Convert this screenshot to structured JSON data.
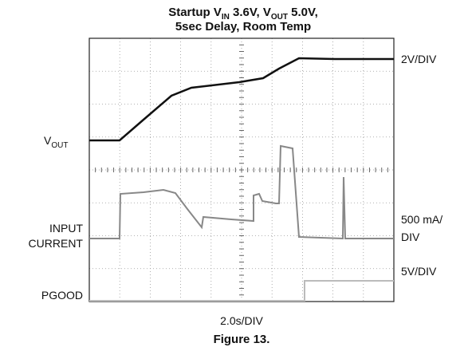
{
  "title": {
    "line1": [
      "Startup V",
      "IN",
      " 3.6V, V",
      "OUT",
      " 5.0V,"
    ],
    "line2": "5sec Delay, Room Temp"
  },
  "labels": {
    "vout": [
      "V",
      "OUT"
    ],
    "input": "INPUT",
    "current": "CURRENT",
    "pgood": "PGOOD",
    "scale_vout": "2V/DIV",
    "scale_current_1": "500 mA/",
    "scale_current_2": "DIV",
    "scale_pgood": "5V/DIV",
    "time": "2.0s/DIV"
  },
  "caption": "Figure 13."
}
